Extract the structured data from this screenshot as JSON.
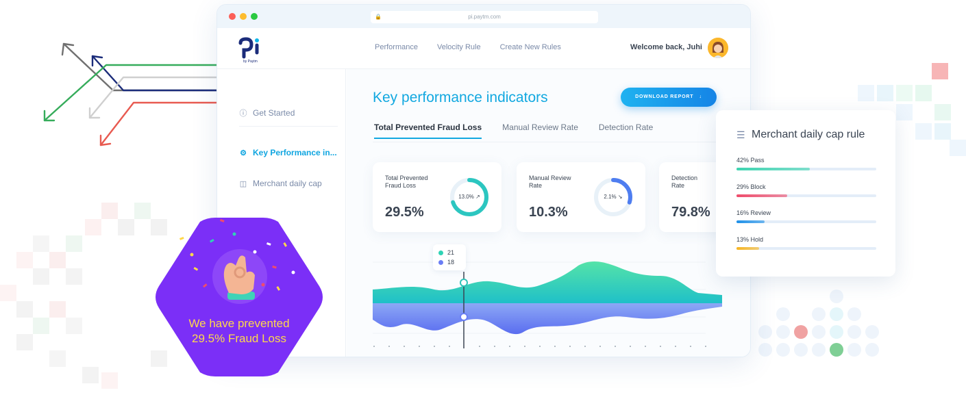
{
  "browser": {
    "url": "pi.paytm.com"
  },
  "brand": {
    "logo_text": "pi",
    "logo_sub": "by Paytm",
    "accent": "#12a8e0",
    "navy": "#1b2c7a"
  },
  "nav": {
    "links": [
      "Performance",
      "Velocity Rule",
      "Create New Rules"
    ],
    "welcome": "Welcome back, Juhi"
  },
  "sidebar": {
    "items": [
      {
        "label": "Get Started",
        "icon": "info-icon"
      },
      {
        "label": "Key Performance in...",
        "icon": "gear-icon"
      },
      {
        "label": "Merchant daily cap",
        "icon": "document-icon"
      }
    ]
  },
  "main": {
    "title": "Key performance indicators",
    "download_label": "DOWNLOAD REPORT",
    "tabs": [
      "Total Prevented Fraud Loss",
      "Manual Review Rate",
      "Detection Rate"
    ]
  },
  "cards": [
    {
      "label": "Total Prevented Fraud Loss",
      "value": "29.5%",
      "ring_label": "13.0%",
      "ring_fraction": 0.7,
      "trend": "up",
      "color": "#2cc6c0"
    },
    {
      "label": "Manual Review Rate",
      "value": "10.3%",
      "ring_label": "2.1%",
      "ring_fraction": 0.3,
      "trend": "down",
      "color": "#4e7df0"
    },
    {
      "label": "Detection Rate",
      "value": "79.8%"
    }
  ],
  "chart_data": {
    "type": "area",
    "series": [
      {
        "values": [
          21
        ],
        "color": "#2fd3b5"
      },
      {
        "values": [
          18
        ],
        "color": "#6a7ef5"
      }
    ],
    "legend": [
      "21",
      "18"
    ]
  },
  "merchant_card": {
    "title": "Merchant daily cap rule",
    "rules": [
      {
        "label": "42% Pass",
        "fraction": 0.42,
        "color": "#3ed4b0"
      },
      {
        "label": "29% Block",
        "fraction": 0.29,
        "color": "#ef4c6b"
      },
      {
        "label": "16% Review",
        "fraction": 0.16,
        "color": "#1e90e8"
      },
      {
        "label": "13% Hold",
        "fraction": 0.13,
        "color": "#f7b521"
      }
    ]
  },
  "badge": {
    "text": "We have prevented 29.5% Fraud Loss"
  }
}
